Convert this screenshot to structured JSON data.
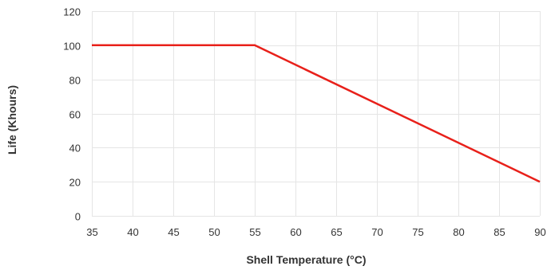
{
  "chart_data": {
    "type": "line",
    "title": "",
    "xlabel": "Shell Temperature (°C)",
    "ylabel": "Life (Khours)",
    "xlim": [
      35,
      90
    ],
    "ylim": [
      0,
      120
    ],
    "x_ticks": [
      "35",
      "40",
      "45",
      "50",
      "55",
      "60",
      "65",
      "70",
      "75",
      "80",
      "85",
      "90"
    ],
    "y_ticks": [
      "0",
      "20",
      "40",
      "60",
      "80",
      "100",
      "120"
    ],
    "grid": true,
    "legend": "none",
    "series": [
      {
        "color": "#e8201a",
        "x": [
          35,
          55,
          90
        ],
        "y": [
          100,
          100,
          20
        ]
      }
    ]
  }
}
